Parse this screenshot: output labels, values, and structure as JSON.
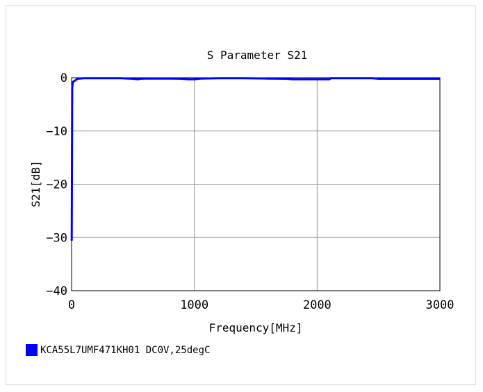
{
  "chart_data": {
    "type": "line",
    "title": "S Parameter S21",
    "xlabel": "Frequency[MHz]",
    "ylabel": "S21[dB]",
    "xlim": [
      0,
      3000
    ],
    "ylim": [
      -40,
      0
    ],
    "x_ticks": [
      "0",
      "1000",
      "2000",
      "3000"
    ],
    "y_ticks": [
      "0",
      "−10",
      "−20",
      "−30",
      "−40"
    ],
    "grid": true,
    "legend_position": "bottom-left",
    "series": [
      {
        "name": "KCA55L7UMF471KH01 DC0V,25degC",
        "color": "#0000ff",
        "x": [
          1,
          5,
          10,
          50,
          100,
          200,
          300,
          400,
          500,
          540,
          560,
          600,
          700,
          800,
          900,
          950,
          1000,
          1050,
          1200,
          1400,
          1600,
          1750,
          1800,
          2000,
          2100,
          2110,
          2200,
          2400,
          2450,
          2500,
          2700,
          3000
        ],
        "y": [
          -30.6,
          -2.0,
          -0.8,
          -0.2,
          -0.1,
          -0.1,
          -0.1,
          -0.1,
          -0.2,
          -0.3,
          -0.2,
          -0.15,
          -0.15,
          -0.15,
          -0.2,
          -0.3,
          -0.3,
          -0.15,
          -0.1,
          -0.1,
          -0.15,
          -0.2,
          -0.3,
          -0.3,
          -0.3,
          -0.1,
          -0.1,
          -0.1,
          -0.1,
          -0.2,
          -0.2,
          -0.2
        ]
      }
    ]
  }
}
